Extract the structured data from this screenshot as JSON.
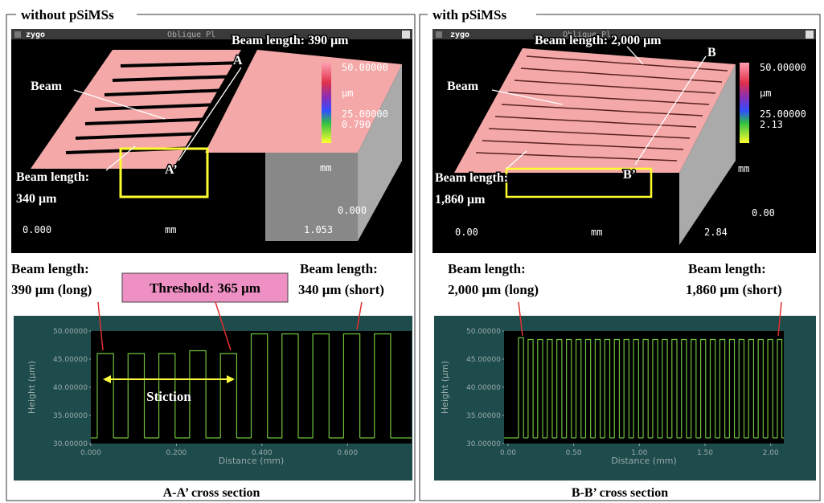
{
  "panels": [
    {
      "title": "without pSiMSs",
      "view3d": {
        "logo": "zygo",
        "header": "Oblique Pl",
        "scale_max": "50.00000",
        "scale_unit": "μm",
        "scale_mid": "25.00000",
        "scale_min": "0.790",
        "z_unit": "mm",
        "z_zero": "0.000",
        "x_start": "0.000",
        "x_unit": "mm",
        "x_end": "1.053"
      },
      "annotations": {
        "top_length": "Beam length: 390 μm",
        "point": "A",
        "beam": "Beam",
        "point_prime": "A’",
        "bottom_length_1": "Beam length:",
        "bottom_length_2": "340 μm"
      },
      "profile_labels": {
        "long_1": "Beam length:",
        "long_2": "390 μm (long)",
        "threshold": "Threshold: 365 μm",
        "short_1": "Beam length:",
        "short_2": "340 μm (short)",
        "stiction": "Stiction"
      },
      "caption": "A-A’ cross section"
    },
    {
      "title": "with pSiMSs",
      "view3d": {
        "logo": "zygo",
        "header": "Oblique Pl",
        "scale_max": "50.00000",
        "scale_unit": "μm",
        "scale_mid": "25.00000",
        "scale_min": "2.13",
        "z_unit": "mm",
        "z_zero": "0.00",
        "x_start": "0.00",
        "x_unit": "mm",
        "x_end": "2.84"
      },
      "annotations": {
        "top_length": "Beam length: 2,000 μm",
        "point": "B",
        "beam": "Beam",
        "point_prime": "B’",
        "bottom_length_1": "Beam length:",
        "bottom_length_2": "1,860 μm"
      },
      "profile_labels": {
        "long_1": "Beam length:",
        "long_2": "2,000 μm (long)",
        "short_1": "Beam length:",
        "short_2": "1,860 μm (short)"
      },
      "caption": "B-B’ cross section"
    }
  ],
  "chart_data": [
    {
      "type": "line",
      "y_label": "Height (μm)",
      "x_label": "Distance (mm)",
      "color": "#6fc23c",
      "xlim": [
        0,
        0.75
      ],
      "xticks": [
        {
          "value": 0,
          "label": "0.000"
        },
        {
          "value": 0.2,
          "label": "0.200"
        },
        {
          "value": 0.4,
          "label": "0.400"
        },
        {
          "value": 0.6,
          "label": "0.600"
        }
      ],
      "ylim": [
        30,
        50
      ],
      "yticks": [
        {
          "value": 30,
          "label": "30.00000"
        },
        {
          "value": 35,
          "label": "35.00000"
        },
        {
          "value": 40,
          "label": "40.00000"
        },
        {
          "value": 45,
          "label": "45.00000"
        },
        {
          "value": 50,
          "label": "50.00000"
        }
      ],
      "baseline": 31,
      "beams": {
        "x_start": [
          0.015,
          0.087,
          0.159,
          0.231,
          0.303,
          0.375,
          0.447,
          0.519,
          0.591,
          0.663
        ],
        "x_end": [
          0.053,
          0.125,
          0.197,
          0.269,
          0.341,
          0.413,
          0.485,
          0.557,
          0.629,
          0.701
        ],
        "height": [
          46,
          46,
          46,
          46.5,
          46,
          49.5,
          49.5,
          49.5,
          49.5,
          49.5
        ]
      }
    },
    {
      "type": "line",
      "y_label": "Height (μm)",
      "x_label": "Distance (mm)",
      "color": "#6fc23c",
      "xlim": [
        -0.03,
        2.1
      ],
      "xticks": [
        {
          "value": 0,
          "label": "0.00"
        },
        {
          "value": 0.5,
          "label": "0.50"
        },
        {
          "value": 1,
          "label": "1.00"
        },
        {
          "value": 1.5,
          "label": "1.50"
        },
        {
          "value": 2,
          "label": "2.00"
        }
      ],
      "ylim": [
        30,
        50
      ],
      "yticks": [
        {
          "value": 30,
          "label": "30.00000"
        },
        {
          "value": 35,
          "label": "35.00000"
        },
        {
          "value": 40,
          "label": "40.00000"
        },
        {
          "value": 45,
          "label": "45.00000"
        },
        {
          "value": 50,
          "label": "50.00000"
        }
      ],
      "baseline": 31,
      "beams": {
        "x_start": [
          0.08,
          0.153,
          0.226,
          0.299,
          0.372,
          0.445,
          0.518,
          0.591,
          0.664,
          0.737,
          0.81,
          0.883,
          0.956,
          1.029,
          1.102,
          1.175,
          1.248,
          1.321,
          1.394,
          1.467,
          1.54,
          1.613,
          1.686,
          1.759,
          1.832,
          1.905,
          1.978,
          2.051
        ],
        "x_end": [
          0.118,
          0.191,
          0.264,
          0.337,
          0.41,
          0.483,
          0.556,
          0.629,
          0.702,
          0.775,
          0.848,
          0.921,
          0.994,
          1.067,
          1.14,
          1.213,
          1.286,
          1.359,
          1.432,
          1.505,
          1.578,
          1.651,
          1.724,
          1.797,
          1.87,
          1.943,
          2.016,
          2.085
        ],
        "height": [
          48.8,
          48.5,
          48.5,
          48.5,
          48.5,
          48.5,
          48.5,
          48.5,
          48.5,
          48.5,
          48.5,
          48.5,
          48.5,
          48.5,
          48.5,
          48.5,
          48.5,
          48.5,
          48.5,
          48.5,
          48.5,
          48.5,
          48.5,
          48.5,
          48.5,
          48.5,
          48.5,
          48.5
        ]
      }
    }
  ]
}
